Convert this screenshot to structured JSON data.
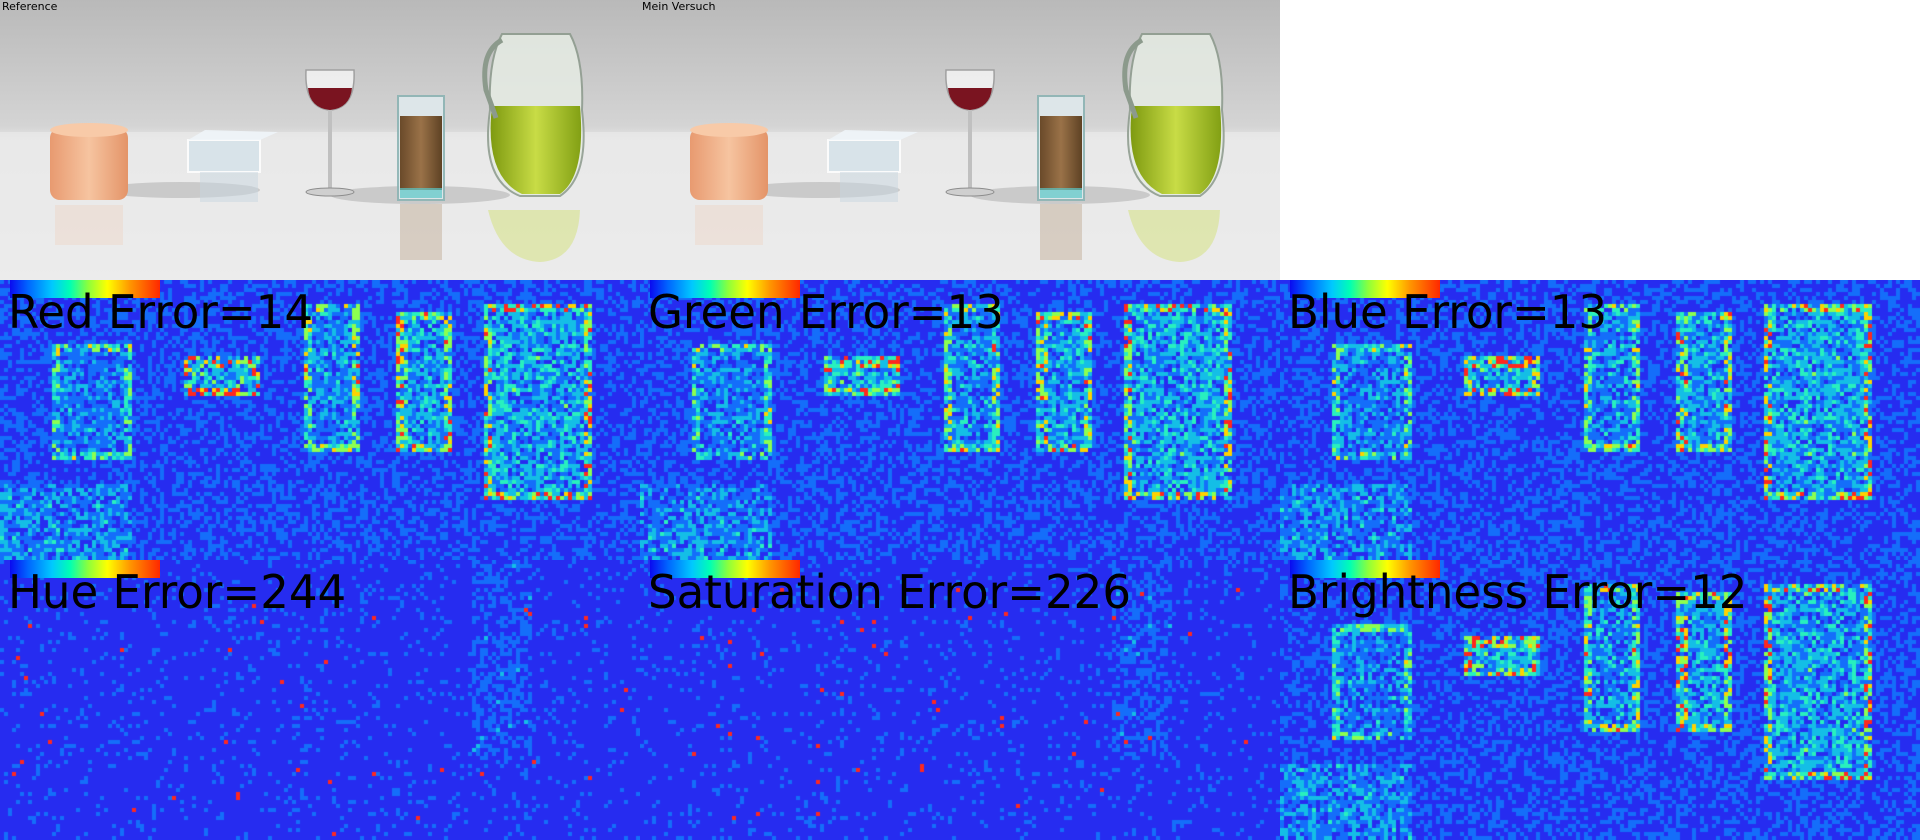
{
  "top": {
    "reference_label": "Reference",
    "attempt_label": "Mein Versuch"
  },
  "errors": [
    {
      "label": "Red Error=14"
    },
    {
      "label": "Green Error=13"
    },
    {
      "label": "Blue Error=13"
    },
    {
      "label": "Hue Error=244"
    },
    {
      "label": "Saturation Error=226"
    },
    {
      "label": "Brightness Error=12"
    }
  ],
  "colors": {
    "map_base": "#2a2ef0",
    "map_cyan": "#1ecfd0",
    "map_green": "#3cff78",
    "map_red": "#ff1e1e",
    "juice": "#a8c41e",
    "wine": "#7a1420",
    "candle": "#f0b088"
  }
}
